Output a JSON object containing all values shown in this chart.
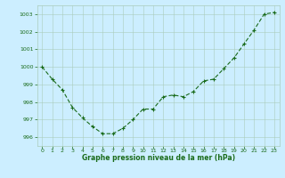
{
  "x": [
    0,
    1,
    2,
    3,
    4,
    5,
    6,
    7,
    8,
    9,
    10,
    11,
    12,
    13,
    14,
    15,
    16,
    17,
    18,
    19,
    20,
    21,
    22,
    23
  ],
  "y": [
    1000.0,
    999.3,
    998.7,
    997.7,
    997.1,
    996.6,
    996.2,
    996.2,
    996.5,
    997.0,
    997.6,
    997.6,
    998.3,
    998.4,
    998.3,
    998.6,
    999.2,
    999.3,
    999.9,
    1000.5,
    1001.3,
    1002.1,
    1003.0,
    1003.1
  ],
  "ylim": [
    995.5,
    1003.5
  ],
  "yticks": [
    996,
    997,
    998,
    999,
    1000,
    1001,
    1002,
    1003
  ],
  "xlim": [
    -0.5,
    23.5
  ],
  "xticks": [
    0,
    1,
    2,
    3,
    4,
    5,
    6,
    7,
    8,
    9,
    10,
    11,
    12,
    13,
    14,
    15,
    16,
    17,
    18,
    19,
    20,
    21,
    22,
    23
  ],
  "xlabel": "Graphe pression niveau de la mer (hPa)",
  "line_color": "#1a6b1a",
  "marker": "+",
  "marker_size": 3,
  "bg_color": "#cceeff",
  "grid_color": "#aaccbb",
  "tick_color": "#1a6b1a",
  "xlabel_color": "#1a6b1a",
  "line_width": 0.8,
  "tick_fontsize": 4.5,
  "xlabel_fontsize": 5.5
}
